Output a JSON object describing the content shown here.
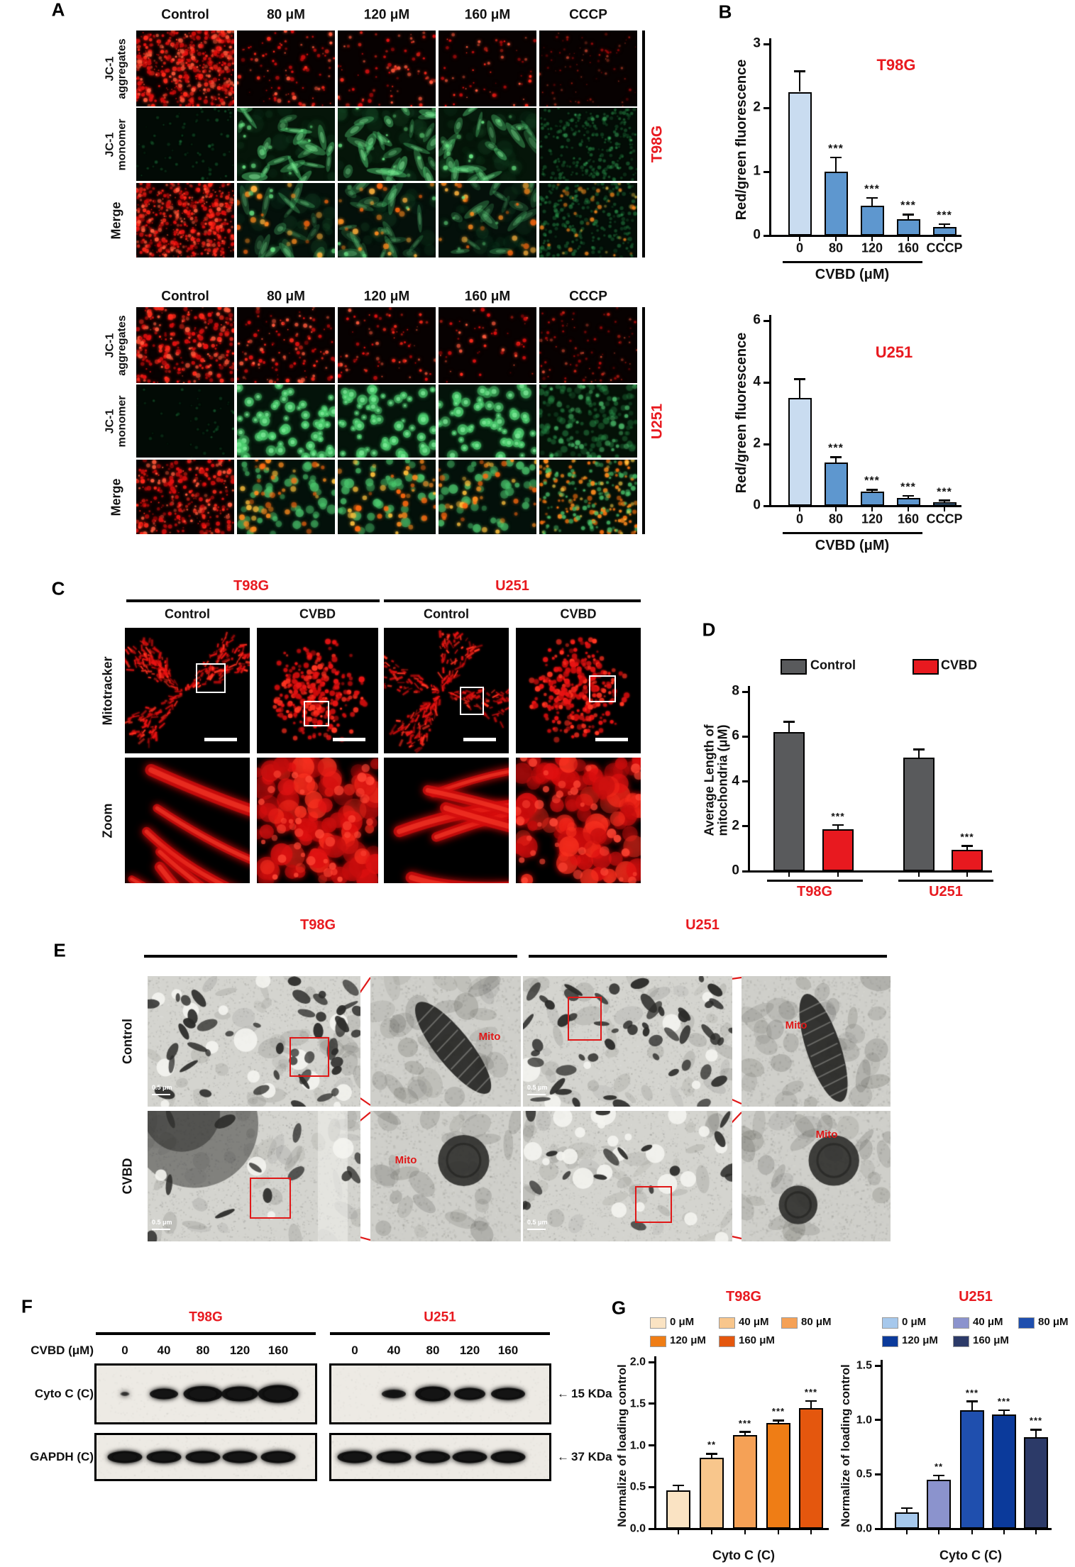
{
  "colors": {
    "red_text": "#e8191f",
    "annotation_red": "#e01818",
    "bar_light_blue": "#c9dcf0",
    "bar_blue": "#5e97cf",
    "bar_gray": "#595a5c",
    "bar_red": "#e8191f"
  },
  "panelA": {
    "label": "A",
    "column_headers": [
      "Control",
      "80 μM",
      "120 μM",
      "160 μM",
      "CCCP"
    ],
    "row_labels": [
      [
        "JC-1",
        "aggregates"
      ],
      [
        "JC-1",
        "monomer"
      ],
      [
        "Merge"
      ]
    ],
    "blocks": [
      {
        "cell_line": "T98G"
      },
      {
        "cell_line": "U251"
      }
    ]
  },
  "panelB": {
    "label": "B"
  },
  "panelC": {
    "label": "C",
    "cell_lines": [
      "T98G",
      "U251"
    ],
    "column_headers": [
      "Control",
      "CVBD",
      "Control",
      "CVBD"
    ],
    "row_labels": [
      "Mitotracker",
      "Zoom"
    ]
  },
  "panelD": {
    "label": "D"
  },
  "panelE": {
    "label": "E",
    "cell_lines": [
      "T98G",
      "U251"
    ],
    "row_labels": [
      "Control",
      "CVBD"
    ],
    "annotation": "Mito",
    "scale_label": "0.5 μm"
  },
  "panelF": {
    "label": "F",
    "cell_lines": [
      "T98G",
      "U251"
    ],
    "dose_row_label": "CVBD (μM)",
    "doses": [
      "0",
      "40",
      "80",
      "120",
      "160"
    ],
    "blot_rows": [
      {
        "label": "Cyto C (C)",
        "arrow": "←",
        "kda": "15 KDa"
      },
      {
        "label": "GAPDH (C)",
        "arrow": "←",
        "kda": "37 KDa"
      }
    ]
  },
  "panelG": {
    "label": "G"
  },
  "chart_data": [
    {
      "id": "jc1_ratio_t98g",
      "type": "bar",
      "title": "T98G",
      "ylabel": "Red/green fluorescence",
      "xlabel": "CVBD (μM)",
      "categories": [
        "0",
        "80",
        "120",
        "160",
        "CCCP"
      ],
      "values": [
        2.25,
        1.0,
        0.47,
        0.26,
        0.13
      ],
      "errors": [
        0.32,
        0.22,
        0.12,
        0.07,
        0.05
      ],
      "sig": [
        "",
        "***",
        "***",
        "***",
        "***"
      ],
      "ylim": [
        0,
        3
      ],
      "yticks": [
        "0",
        "1",
        "2",
        "3"
      ],
      "grid": false,
      "bar_colors": [
        "#c9dcf0",
        "#5e97cf",
        "#5e97cf",
        "#5e97cf",
        "#5e97cf"
      ],
      "xlabel_underline_categories": [
        "0",
        "80",
        "120",
        "160"
      ]
    },
    {
      "id": "jc1_ratio_u251",
      "type": "bar",
      "title": "U251",
      "ylabel": "Red/green fluorescence",
      "xlabel": "CVBD (μM)",
      "categories": [
        "0",
        "80",
        "120",
        "160",
        "CCCP"
      ],
      "values": [
        3.5,
        1.4,
        0.45,
        0.25,
        0.12
      ],
      "errors": [
        0.6,
        0.18,
        0.07,
        0.07,
        0.05
      ],
      "sig": [
        "",
        "***",
        "***",
        "***",
        "***"
      ],
      "ylim": [
        0,
        6
      ],
      "yticks": [
        "0",
        "2",
        "4",
        "6"
      ],
      "grid": false,
      "bar_colors": [
        "#c9dcf0",
        "#5e97cf",
        "#5e97cf",
        "#5e97cf",
        "#5e97cf"
      ],
      "xlabel_underline_categories": [
        "0",
        "80",
        "120",
        "160"
      ]
    },
    {
      "id": "mito_length",
      "type": "grouped_bar",
      "title": "",
      "ylabel": [
        "Average Length of",
        "mitochondria (μM)"
      ],
      "categories": [
        "T98G",
        "U251"
      ],
      "series": [
        {
          "name": "Control",
          "color": "#595a5c",
          "values": [
            6.2,
            5.05
          ],
          "errors": [
            0.45,
            0.38
          ],
          "sig": [
            "",
            ""
          ]
        },
        {
          "name": "CVBD",
          "color": "#e8191f",
          "values": [
            1.85,
            0.95
          ],
          "errors": [
            0.2,
            0.18
          ],
          "sig": [
            "***",
            "***"
          ]
        }
      ],
      "ylim": [
        0,
        8
      ],
      "yticks": [
        "0",
        "2",
        "4",
        "6",
        "8"
      ],
      "legend_position": "top",
      "grid": false
    },
    {
      "id": "cytoc_t98g",
      "type": "bar",
      "title": "T98G",
      "ylabel": "Normalize of loading control",
      "xlabel": "Cyto C (C)",
      "categories": [
        "0 μM",
        "40 μM",
        "80 μM",
        "120 μM",
        "160 μM"
      ],
      "values": [
        0.46,
        0.85,
        1.12,
        1.27,
        1.45
      ],
      "errors": [
        0.06,
        0.05,
        0.04,
        0.03,
        0.08
      ],
      "sig": [
        "",
        "**",
        "***",
        "***",
        "***"
      ],
      "ylim": [
        0,
        2
      ],
      "yticks": [
        "0.0",
        "0.5",
        "1.0",
        "1.5",
        "2.0"
      ],
      "grid": false,
      "bar_colors": [
        "#fae3c3",
        "#f8c68c",
        "#f5a156",
        "#ef7d15",
        "#e4570e"
      ],
      "legend_position": "top"
    },
    {
      "id": "cytoc_u251",
      "type": "bar",
      "title": "U251",
      "ylabel": "Normalize of loading control",
      "xlabel": "Cyto C (C)",
      "categories": [
        "0 μM",
        "40 μM",
        "80 μM",
        "120 μM",
        "160 μM"
      ],
      "values": [
        0.15,
        0.45,
        1.09,
        1.05,
        0.84
      ],
      "errors": [
        0.04,
        0.04,
        0.08,
        0.04,
        0.07
      ],
      "sig": [
        "",
        "**",
        "***",
        "***",
        "***"
      ],
      "ylim": [
        0,
        1.5
      ],
      "yticks": [
        "0.0",
        "0.5",
        "1.0",
        "1.5"
      ],
      "grid": false,
      "bar_colors": [
        "#a6c8ec",
        "#8b93cd",
        "#1f4fae",
        "#0b3a9b",
        "#2c3a68"
      ],
      "legend_position": "top"
    }
  ]
}
